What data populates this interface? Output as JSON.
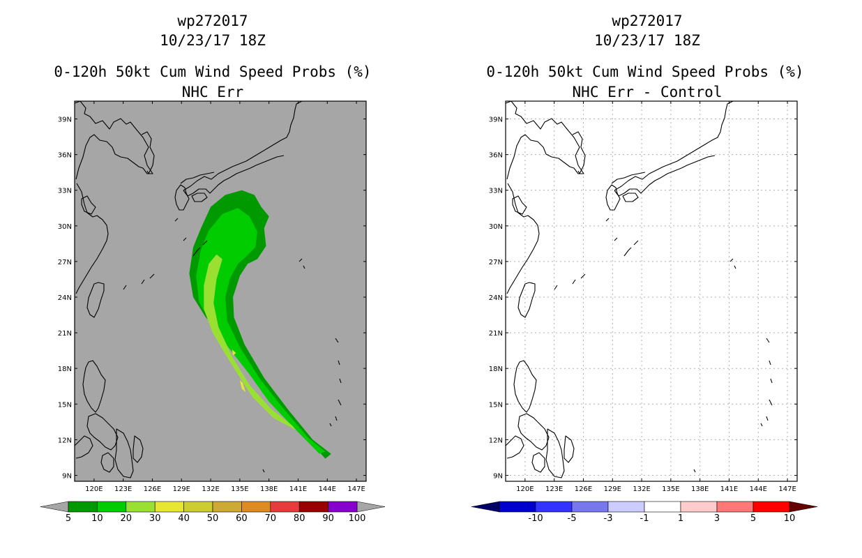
{
  "panels": [
    {
      "storm": "wp272017",
      "time": "10/23/17 18Z",
      "product": "0-120h 50kt Cum Wind Speed Probs (%)",
      "subtitle": "NHC Err"
    },
    {
      "storm": "wp272017",
      "time": "10/23/17 18Z",
      "product": "0-120h 50kt Cum Wind Speed Probs (%)",
      "subtitle": "NHC Err - Control"
    }
  ],
  "chart_data": [
    {
      "type": "contour-map",
      "title": "0-120h 50kt Cum Wind Speed Probs (%)",
      "subtitle": "NHC Err",
      "lon_range": [
        118,
        148
      ],
      "lat_range": [
        8.5,
        40.5
      ],
      "xticks": [
        "120E",
        "123E",
        "126E",
        "129E",
        "132E",
        "135E",
        "138E",
        "141E",
        "144E",
        "147E"
      ],
      "yticks": [
        "9N",
        "12N",
        "15N",
        "18N",
        "21N",
        "24N",
        "27N",
        "30N",
        "33N",
        "36N",
        "39N"
      ],
      "contour_levels_shown": [
        5,
        10,
        20,
        30
      ],
      "colorbar": {
        "labels": [
          "5",
          "10",
          "20",
          "30",
          "40",
          "50",
          "60",
          "70",
          "80",
          "90",
          "100"
        ],
        "colors": [
          "#009900",
          "#00cc00",
          "#99e033",
          "#e6e633",
          "#cccc33",
          "#ccaa33",
          "#e08a22",
          "#e63c3c",
          "#990000",
          "#8800cc"
        ]
      },
      "background": "#a6a6a6"
    },
    {
      "type": "contour-map",
      "title": "0-120h 50kt Cum Wind Speed Probs (%)",
      "subtitle": "NHC Err - Control",
      "lon_range": [
        118,
        148
      ],
      "lat_range": [
        8.5,
        40.5
      ],
      "xticks": [
        "120E",
        "123E",
        "126E",
        "129E",
        "132E",
        "135E",
        "138E",
        "141E",
        "144E",
        "147E"
      ],
      "yticks": [
        "9N",
        "12N",
        "15N",
        "18N",
        "21N",
        "24N",
        "27N",
        "30N",
        "33N",
        "36N",
        "39N"
      ],
      "grid": true,
      "colorbar": {
        "labels": [
          "-10",
          "-5",
          "-3",
          "-1",
          "1",
          "3",
          "5",
          "10"
        ],
        "colors": [
          "#0000cc",
          "#3333ff",
          "#7777ee",
          "#ccccff",
          "#ffffff",
          "#ffcccc",
          "#ff7777",
          "#ff0000"
        ]
      },
      "background": "#ffffff"
    }
  ]
}
